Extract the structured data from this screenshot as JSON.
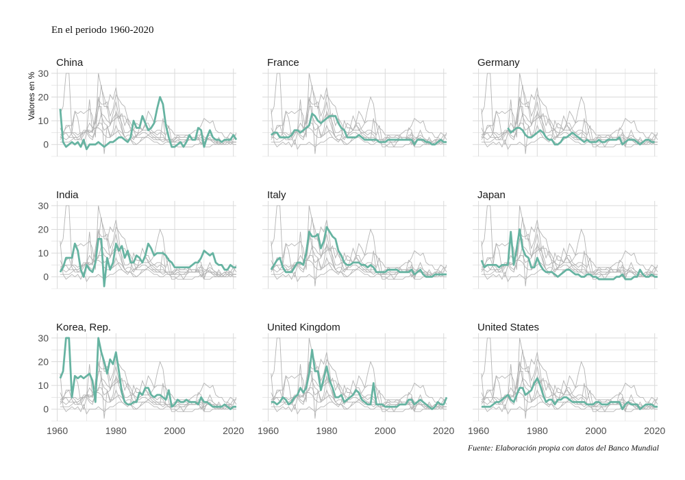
{
  "subtitle": "En el periodo 1960-2020",
  "caption": "Fuente: Elaboración propia con datos del Banco Mundial",
  "chart_data": {
    "type": "line",
    "layout": "small-multiples",
    "ylabel": "Valores en %",
    "xlabel": "",
    "xlim": [
      1960,
      2020
    ],
    "ylim": [
      -5,
      32
    ],
    "x_ticks": [
      1960,
      1980,
      2000,
      2020
    ],
    "y_ticks": [
      0,
      10,
      20,
      30
    ],
    "grid": true,
    "highlight_color": "#66b3a1",
    "background_color": "#b3b3b3",
    "panels": [
      {
        "name": "China",
        "x_start": 1961,
        "values": [
          15,
          1,
          -1,
          0,
          1,
          0,
          1,
          -1,
          2,
          -2,
          0,
          0,
          0,
          1,
          0,
          -1,
          0,
          1,
          1,
          2,
          3,
          3,
          2,
          1,
          3,
          10,
          7,
          7,
          12,
          9,
          6,
          7,
          9,
          15,
          20,
          17,
          8,
          3,
          -1,
          -1,
          0,
          1,
          -1,
          1,
          4,
          2,
          2,
          7,
          6,
          -1,
          3,
          6,
          3,
          2,
          2,
          1,
          2,
          2,
          2,
          4,
          2
        ]
      },
      {
        "name": "France",
        "x_start": 1961,
        "values": [
          4,
          5,
          5,
          3,
          3,
          3,
          3,
          4,
          6,
          6,
          5,
          6,
          7,
          8,
          13,
          12,
          10,
          9,
          10,
          11,
          12,
          12,
          12,
          9,
          7,
          6,
          3,
          3,
          3,
          3,
          4,
          3,
          2,
          2,
          2,
          2,
          2,
          1,
          1,
          1,
          2,
          2,
          2,
          2,
          2,
          2,
          2,
          2,
          2,
          0,
          2,
          2,
          2,
          1,
          1,
          0,
          0,
          1,
          2,
          1,
          1
        ]
      },
      {
        "name": "Germany",
        "x_start": 1970,
        "values": [
          7,
          5,
          6,
          7,
          7,
          6,
          4,
          3,
          3,
          4,
          5,
          6,
          5,
          3,
          2,
          2,
          0,
          0,
          1,
          3,
          3,
          4,
          5,
          4,
          3,
          2,
          1,
          2,
          1,
          1,
          1,
          2,
          1,
          1,
          2,
          2,
          2,
          2,
          3,
          0,
          1,
          2,
          2,
          2,
          1,
          0,
          1,
          2,
          2,
          1,
          1
        ]
      },
      {
        "name": "India",
        "x_start": 1961,
        "values": [
          2,
          4,
          8,
          8,
          8,
          14,
          11,
          3,
          0,
          5,
          3,
          2,
          6,
          16,
          16,
          -4,
          8,
          3,
          6,
          14,
          11,
          13,
          8,
          11,
          6,
          6,
          9,
          8,
          6,
          9,
          14,
          12,
          9,
          10,
          10,
          10,
          9,
          7,
          6,
          4,
          4,
          4,
          4,
          4,
          4,
          5,
          6,
          6,
          8,
          11,
          10,
          9,
          10,
          6,
          5,
          5,
          3,
          3,
          5,
          4,
          4
        ]
      },
      {
        "name": "Italy",
        "x_start": 1961,
        "values": [
          3,
          5,
          7,
          8,
          4,
          2,
          2,
          2,
          4,
          6,
          6,
          5,
          10,
          19,
          17,
          17,
          18,
          12,
          15,
          21,
          19,
          17,
          16,
          11,
          9,
          6,
          5,
          5,
          6,
          6,
          6,
          5,
          5,
          4,
          5,
          4,
          2,
          2,
          2,
          2,
          3,
          3,
          3,
          3,
          2,
          2,
          2,
          2,
          3,
          1,
          2,
          3,
          1,
          0,
          0,
          0,
          1,
          1,
          1,
          1,
          1
        ]
      },
      {
        "name": "Japan",
        "x_start": 1961,
        "values": [
          7,
          4,
          5,
          5,
          5,
          5,
          4,
          5,
          5,
          5,
          19,
          5,
          12,
          20,
          12,
          9,
          8,
          4,
          4,
          8,
          5,
          3,
          2,
          2,
          2,
          1,
          0,
          1,
          2,
          3,
          3,
          2,
          1,
          1,
          0,
          0,
          1,
          1,
          0,
          0,
          -1,
          -1,
          -1,
          -1,
          -1,
          -1,
          0,
          0,
          1,
          -1,
          -1,
          -1,
          0,
          0,
          3,
          1,
          0,
          0,
          1,
          0,
          0
        ]
      },
      {
        "name": "Korea, Rep.",
        "x_start": 1961,
        "values": [
          13,
          16,
          30,
          30,
          5,
          14,
          13,
          14,
          13,
          14,
          15,
          12,
          3,
          30,
          24,
          20,
          15,
          21,
          19,
          24,
          16,
          7,
          3,
          2,
          2,
          3,
          3,
          7,
          6,
          9,
          9,
          6,
          5,
          6,
          6,
          5,
          4,
          8,
          1,
          2,
          4,
          3,
          3,
          4,
          3,
          3,
          3,
          2,
          5,
          3,
          3,
          2,
          1,
          1,
          1,
          1,
          2,
          1,
          0,
          1,
          1
        ]
      },
      {
        "name": "United Kingdom",
        "x_start": 1961,
        "values": [
          3,
          3,
          2,
          3,
          5,
          4,
          2,
          3,
          5,
          6,
          9,
          7,
          9,
          15,
          25,
          16,
          16,
          8,
          13,
          18,
          12,
          9,
          5,
          5,
          6,
          3,
          4,
          5,
          6,
          8,
          7,
          4,
          3,
          2,
          2,
          11,
          2,
          2,
          2,
          1,
          1,
          1,
          1,
          1,
          2,
          2,
          2,
          4,
          4,
          2,
          3,
          4,
          3,
          2,
          1,
          0,
          1,
          3,
          2,
          2,
          5
        ]
      },
      {
        "name": "United States",
        "x_start": 1961,
        "values": [
          1,
          1,
          1,
          1,
          2,
          3,
          3,
          4,
          5,
          6,
          4,
          3,
          6,
          9,
          9,
          6,
          7,
          8,
          11,
          13,
          10,
          6,
          3,
          4,
          4,
          2,
          4,
          4,
          5,
          5,
          4,
          3,
          3,
          3,
          3,
          3,
          2,
          2,
          2,
          3,
          3,
          2,
          2,
          2,
          3,
          3,
          3,
          3,
          0,
          2,
          3,
          2,
          2,
          2,
          0,
          1,
          2,
          2,
          2,
          1,
          1
        ]
      }
    ]
  }
}
